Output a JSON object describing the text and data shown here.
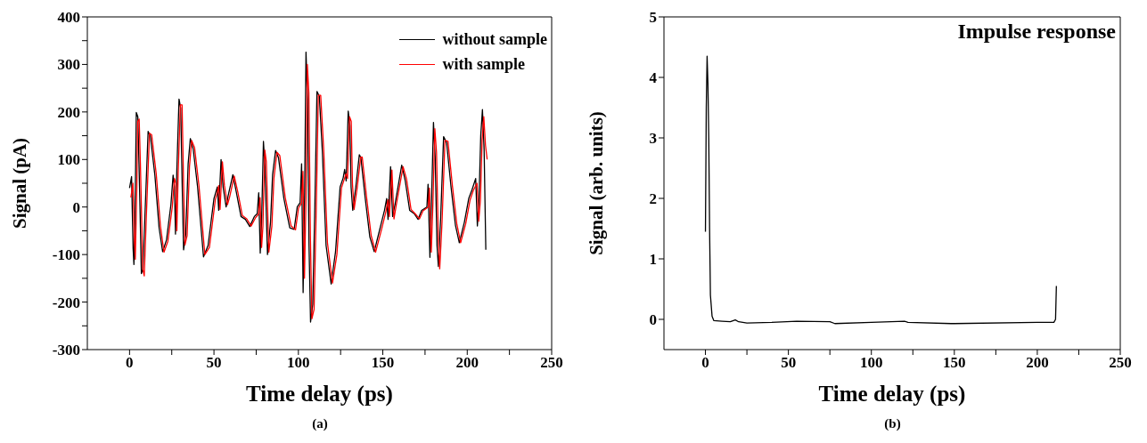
{
  "chart_data": [
    {
      "type": "line",
      "xlabel": "Time delay (ps)",
      "ylabel": "Signal (pA)",
      "annotations": [
        "(a)"
      ],
      "legend": "top right",
      "line_style": "solid",
      "xlim": [
        -25,
        250
      ],
      "xticks": [
        0,
        {
          "value": 25,
          "label": null
        },
        50,
        {
          "value": 75,
          "label": null
        },
        100,
        {
          "value": 125,
          "label": null
        },
        150,
        {
          "value": 175,
          "label": null
        },
        200,
        {
          "value": 225,
          "label": null
        },
        250
      ],
      "ylim": [
        -300,
        400
      ],
      "yticks": [
        -300,
        {
          "value": -250,
          "label": null
        },
        -200,
        {
          "value": -150,
          "label": null
        },
        -100,
        {
          "value": -50,
          "label": null
        },
        0,
        {
          "value": 50,
          "label": null
        },
        100,
        {
          "value": 150,
          "label": null
        },
        200,
        {
          "value": 250,
          "label": null
        },
        300,
        {
          "value": 350,
          "label": null
        },
        400
      ],
      "series": [
        {
          "name": "without sample",
          "color": "#000000",
          "x": [
            0,
            1.2,
            2.1,
            2.6,
            3.5,
            4,
            4.9,
            5.6,
            6.3,
            7,
            7.9,
            9.1,
            11,
            12.3,
            15,
            17.5,
            19.6,
            21.9,
            24.5,
            25.8,
            26.6,
            27.2,
            28,
            29.3,
            30.3,
            31.2,
            32,
            33.3,
            34.7,
            36,
            37.7,
            40.3,
            43.8,
            46.5,
            50,
            51,
            52,
            52.8,
            54.2,
            55.4,
            57.2,
            58.4,
            61.2,
            63.3,
            66,
            68.6,
            71.2,
            73.9,
            75.6,
            76.5,
            77.4,
            78.2,
            79.3,
            80.2,
            81.7,
            83.5,
            84.7,
            86.5,
            88.2,
            91.4,
            94.9,
            97.5,
            99.3,
            101,
            101.9,
            102.8,
            103.7,
            104.5,
            105.4,
            106.3,
            107.2,
            108.5,
            109.8,
            111,
            112.4,
            114.2,
            116.4,
            119.4,
            122,
            124.7,
            126.5,
            127.4,
            128.3,
            129.5,
            130.5,
            131.2,
            132.2,
            134,
            136.1,
            137,
            139.6,
            142.3,
            144.9,
            148.4,
            151,
            152.3,
            153.1,
            154.6,
            155.8,
            157.2,
            161.2,
            163.3,
            165.9,
            168.6,
            170.9,
            173,
            176.1,
            176.8,
            177.9,
            178.9,
            180,
            181,
            182.1,
            182.9,
            184.3,
            186,
            187.8,
            190.4,
            193,
            195.3,
            198.3,
            200.9,
            202.8,
            205,
            206,
            207,
            208,
            209,
            210,
            211
          ],
          "values": [
            40,
            64,
            -87,
            -121,
            55,
            199,
            190,
            91,
            -20,
            -140,
            -131,
            -20,
            159,
            150,
            67,
            -44,
            -94,
            -69,
            5,
            67,
            42,
            -57,
            76,
            227,
            208,
            42,
            -90,
            -57,
            91,
            144,
            122,
            42,
            -105,
            -81,
            18,
            30,
            42,
            -7,
            100,
            42,
            0,
            24,
            68,
            30,
            -20,
            -26,
            -41,
            -20,
            -14,
            30,
            -97,
            -32,
            138,
            85,
            -100,
            -32,
            67,
            119,
            104,
            18,
            -44,
            -47,
            0,
            9,
            91,
            -180,
            30,
            326,
            227,
            -81,
            -242,
            -205,
            12,
            243,
            233,
            116,
            -81,
            -162,
            -94,
            42,
            61,
            79,
            55,
            202,
            171,
            42,
            -7,
            42,
            110,
            104,
            18,
            -63,
            -94,
            -44,
            -7,
            18,
            -26,
            85,
            -20,
            5,
            88,
            55,
            -7,
            -14,
            -26,
            -7,
            0,
            48,
            -106,
            18,
            178,
            104,
            -81,
            -125,
            -20,
            148,
            135,
            42,
            -38,
            -75,
            -32,
            18,
            36,
            60,
            -40,
            20,
            150,
            205,
            120,
            -90
          ]
        },
        {
          "name": "with sample",
          "color": "#ff0000",
          "x": [
            0.8,
            2,
            2.9,
            3.4,
            4.3,
            4.8,
            5.7,
            6.4,
            7.1,
            7.8,
            8.7,
            9.9,
            11.8,
            13.1,
            15.8,
            18.3,
            20.4,
            22.7,
            25.3,
            26.6,
            27.4,
            28,
            28.8,
            30.1,
            31.1,
            32,
            32.8,
            34.1,
            35.5,
            36.8,
            38.5,
            41.1,
            44.6,
            47.3,
            50.8,
            51.8,
            52.8,
            53.6,
            55,
            56.2,
            58,
            59.2,
            62,
            64.1,
            66.8,
            69.4,
            72,
            74.7,
            76.4,
            77.3,
            78.2,
            79,
            80.1,
            81,
            82.5,
            84.3,
            85.5,
            87.3,
            89,
            92.2,
            95.7,
            98.3,
            100.1,
            101.8,
            102.7,
            103.6,
            104.5,
            105.3,
            106.2,
            107.1,
            108,
            109.3,
            110.6,
            111.8,
            113.2,
            115,
            117.2,
            120.2,
            122.8,
            125.5,
            127.3,
            128.2,
            129.1,
            130.3,
            131.3,
            132,
            133,
            134.8,
            136.9,
            137.8,
            140.4,
            143.1,
            145.7,
            149.2,
            151.8,
            153.1,
            153.9,
            155.4,
            156.6,
            158,
            162,
            164.1,
            166.7,
            169.4,
            171.7,
            173.8,
            176.9,
            177.6,
            178.7,
            179.7,
            180.8,
            181.8,
            182.9,
            183.7,
            185.1,
            186.8,
            188.6,
            191.2,
            193.8,
            196.1,
            199.1,
            201.7,
            203.6,
            205.8,
            206.8,
            207.8,
            208.8,
            209.8,
            210.8,
            211.8
          ],
          "values": [
            20,
            50,
            -70,
            -110,
            40,
            180,
            185,
            95,
            -15,
            -130,
            -145,
            -25,
            155,
            152,
            70,
            -40,
            -95,
            -72,
            0,
            60,
            50,
            -50,
            70,
            215,
            215,
            50,
            -80,
            -60,
            85,
            140,
            125,
            45,
            -100,
            -85,
            15,
            28,
            45,
            -5,
            95,
            45,
            5,
            20,
            65,
            32,
            -18,
            -25,
            -40,
            -22,
            -15,
            20,
            -85,
            -40,
            120,
            95,
            -95,
            -40,
            60,
            115,
            108,
            20,
            -40,
            -48,
            -2,
            8,
            75,
            -150,
            20,
            300,
            240,
            -60,
            -235,
            -215,
            0,
            235,
            235,
            120,
            -75,
            -160,
            -100,
            40,
            60,
            70,
            60,
            190,
            180,
            50,
            -5,
            40,
            105,
            105,
            20,
            -60,
            -95,
            -48,
            -10,
            15,
            -20,
            78,
            -25,
            5,
            85,
            58,
            -5,
            -15,
            -25,
            -8,
            0,
            40,
            -95,
            10,
            165,
            115,
            -70,
            -130,
            -30,
            140,
            138,
            45,
            -35,
            -75,
            -35,
            15,
            35,
            50,
            -30,
            15,
            140,
            190,
            130,
            100
          ]
        }
      ]
    },
    {
      "type": "line",
      "title": "Impulse response",
      "xlabel": "Time delay (ps)",
      "ylabel": "Signal (arb. units)",
      "annotations": [
        "(b)"
      ],
      "line_style": "solid",
      "xlim": [
        -25,
        250
      ],
      "xticks": [
        0,
        {
          "value": 25,
          "label": null
        },
        50,
        {
          "value": 75,
          "label": null
        },
        100,
        {
          "value": 125,
          "label": null
        },
        150,
        {
          "value": 175,
          "label": null
        },
        200,
        {
          "value": 225,
          "label": null
        },
        250
      ],
      "ylim": [
        -0.5,
        5
      ],
      "yticks": [
        0,
        1,
        2,
        3,
        4,
        5
      ],
      "series": [
        {
          "color": "#000000",
          "x": [
            0,
            0.5,
            1,
            1.5,
            2,
            2.5,
            3,
            4,
            5,
            10,
            15,
            18,
            20,
            25,
            40,
            55,
            75,
            78,
            100,
            120,
            122,
            148,
            150,
            200,
            210,
            211,
            211.5
          ],
          "values": [
            1.45,
            3.5,
            4.35,
            3.9,
            3.0,
            1.5,
            0.4,
            0.05,
            -0.02,
            -0.03,
            -0.04,
            -0.01,
            -0.04,
            -0.06,
            -0.05,
            -0.03,
            -0.04,
            -0.07,
            -0.05,
            -0.03,
            -0.05,
            -0.07,
            -0.07,
            -0.05,
            -0.05,
            0,
            0.55
          ]
        }
      ]
    }
  ]
}
